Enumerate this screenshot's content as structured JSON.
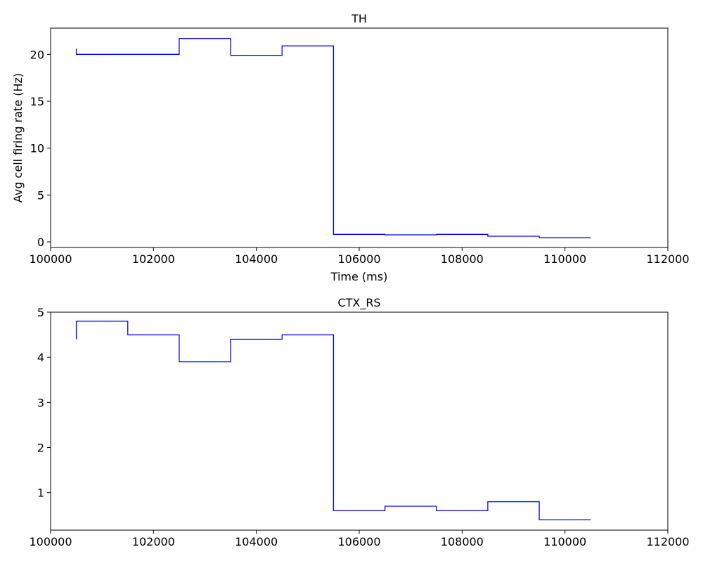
{
  "colors": {
    "line": "#0000ff",
    "axis": "#000000",
    "background": "#ffffff"
  },
  "chart_data": [
    {
      "type": "line",
      "step": "post",
      "title": "TH",
      "xlabel": "Time (ms)",
      "ylabel": "Avg cell firing rate (Hz)",
      "xlim": [
        100000,
        112000
      ],
      "ylim": [
        -0.6,
        22.8
      ],
      "xticks": [
        100000,
        102000,
        104000,
        106000,
        108000,
        110000,
        112000
      ],
      "yticks": [
        0,
        5,
        10,
        15,
        20
      ],
      "grid": false,
      "series": [
        {
          "color": "#0000ff",
          "x": [
            100500,
            100500,
            102500,
            103500,
            104500,
            105500,
            106500,
            107500,
            108500,
            109500,
            110500
          ],
          "y": [
            20.6,
            20.0,
            21.7,
            19.9,
            20.9,
            0.8,
            0.75,
            0.8,
            0.6,
            0.45,
            0.45
          ]
        }
      ]
    },
    {
      "type": "line",
      "step": "post",
      "title": "CTX_RS",
      "xlabel": "",
      "ylabel": "",
      "xlim": [
        100000,
        112000
      ],
      "ylim": [
        0.17,
        5.0
      ],
      "xticks": [
        100000,
        102000,
        104000,
        106000,
        108000,
        110000,
        112000
      ],
      "yticks": [
        1,
        2,
        3,
        4,
        5
      ],
      "grid": false,
      "series": [
        {
          "color": "#0000ff",
          "x": [
            100500,
            100500,
            101500,
            102500,
            103500,
            104500,
            105500,
            106500,
            107500,
            108500,
            109500,
            110500
          ],
          "y": [
            4.4,
            4.8,
            4.5,
            3.9,
            4.4,
            4.5,
            0.6,
            0.7,
            0.6,
            0.8,
            0.4,
            0.4
          ]
        }
      ]
    }
  ]
}
